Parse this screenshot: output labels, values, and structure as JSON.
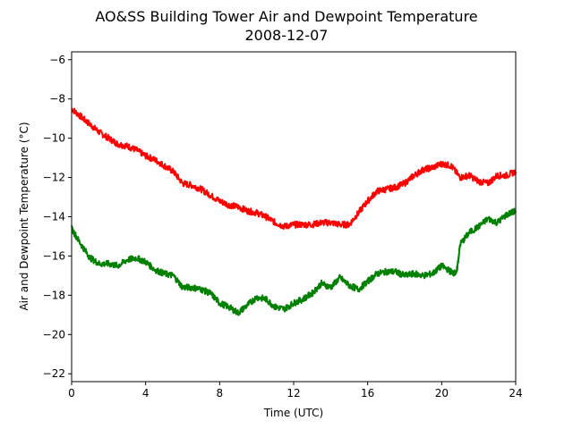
{
  "chart_data": {
    "type": "line",
    "title": "AO&SS Building Tower Air and Dewpoint Temperature",
    "subtitle": "2008-12-07",
    "xlabel": "Time (UTC)",
    "ylabel": "Air and Dewpoint Temperature (°C)",
    "xlim": [
      0,
      24
    ],
    "ylim": [
      -22.4,
      -5.6
    ],
    "xticks": [
      0,
      4,
      8,
      12,
      16,
      20,
      24
    ],
    "yticks": [
      -22,
      -20,
      -18,
      -16,
      -14,
      -12,
      -10,
      -8,
      -6
    ],
    "grid": false,
    "legend": "none",
    "series": [
      {
        "color": "#ff0000",
        "x": [
          0,
          0.5,
          1,
          1.5,
          2,
          2.5,
          3,
          3.5,
          4,
          4.5,
          5,
          5.5,
          6,
          6.5,
          7,
          7.5,
          8,
          8.5,
          9,
          9.5,
          10,
          10.5,
          11,
          11.5,
          12,
          12.5,
          13,
          13.5,
          14,
          14.5,
          15,
          15.5,
          16,
          16.5,
          17,
          17.5,
          18,
          18.5,
          19,
          19.5,
          20,
          20.5,
          21,
          21.5,
          22,
          22.5,
          23,
          23.5,
          24
        ],
        "y": [
          -8.5,
          -8.9,
          -9.3,
          -9.7,
          -10.0,
          -10.3,
          -10.4,
          -10.6,
          -10.9,
          -11.1,
          -11.4,
          -11.7,
          -12.3,
          -12.4,
          -12.6,
          -12.9,
          -13.2,
          -13.4,
          -13.5,
          -13.7,
          -13.8,
          -14.0,
          -14.3,
          -14.5,
          -14.4,
          -14.4,
          -14.4,
          -14.3,
          -14.3,
          -14.4,
          -14.4,
          -13.8,
          -13.2,
          -12.7,
          -12.6,
          -12.5,
          -12.3,
          -11.9,
          -11.6,
          -11.5,
          -11.3,
          -11.4,
          -12.0,
          -11.9,
          -12.2,
          -12.3,
          -11.9,
          -11.9,
          -11.7
        ]
      },
      {
        "color": "#008000",
        "x": [
          0,
          0.5,
          1,
          1.5,
          2,
          2.5,
          3,
          3.5,
          4,
          4.5,
          5,
          5.5,
          6,
          6.5,
          7,
          7.5,
          8,
          8.5,
          9,
          9.5,
          10,
          10.5,
          11,
          11.5,
          12,
          12.5,
          13,
          13.5,
          14,
          14.5,
          15,
          15.5,
          16,
          16.5,
          17,
          17.5,
          18,
          18.5,
          19,
          19.5,
          20,
          20.5,
          20.8,
          21,
          21.5,
          22,
          22.5,
          23,
          23.5,
          24
        ],
        "y": [
          -14.6,
          -15.4,
          -16.1,
          -16.4,
          -16.4,
          -16.5,
          -16.2,
          -16.1,
          -16.3,
          -16.7,
          -16.9,
          -17.0,
          -17.6,
          -17.6,
          -17.7,
          -17.9,
          -18.4,
          -18.6,
          -18.9,
          -18.5,
          -18.1,
          -18.2,
          -18.6,
          -18.7,
          -18.4,
          -18.2,
          -17.9,
          -17.4,
          -17.6,
          -17.1,
          -17.5,
          -17.7,
          -17.3,
          -16.9,
          -16.8,
          -16.8,
          -17.0,
          -16.9,
          -17.0,
          -16.9,
          -16.5,
          -16.8,
          -16.9,
          -15.4,
          -14.8,
          -14.5,
          -14.1,
          -14.3,
          -13.9,
          -13.7
        ]
      }
    ]
  }
}
